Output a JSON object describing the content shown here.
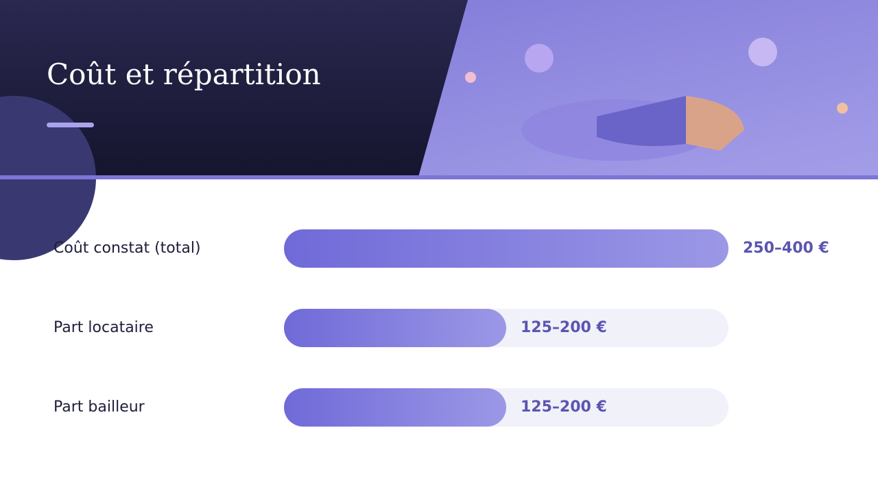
{
  "header": {
    "title": "Coût et répartition"
  },
  "rows": [
    {
      "label": "Coût constat (total)",
      "min": 250,
      "max": 400,
      "value_label": "250–400 €"
    },
    {
      "label": "Part locataire",
      "min": 125,
      "max": 200,
      "value_label": "125–200 €"
    },
    {
      "label": "Part bailleur",
      "min": 125,
      "max": 200,
      "value_label": "125–200 €"
    }
  ]
}
